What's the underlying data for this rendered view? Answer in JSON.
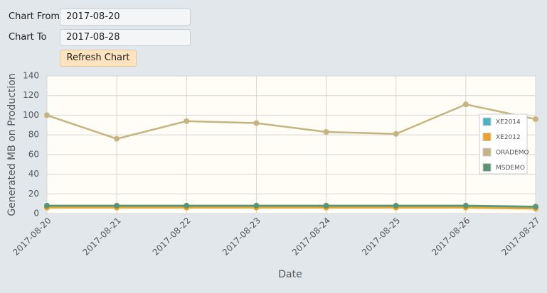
{
  "form": {
    "from_label": "Chart From",
    "from_value": "2017-08-20",
    "to_label": "Chart To",
    "to_value": "2017-08-28",
    "button": "Refresh Chart"
  },
  "chart_data": {
    "type": "line",
    "x_label": "Date",
    "y_label": "Generated MB on Production",
    "x": [
      "2017-08-20",
      "2017-08-21",
      "2017-08-22",
      "2017-08-23",
      "2017-08-24",
      "2017-08-25",
      "2017-08-26",
      "2017-08-27"
    ],
    "xlim": [
      "2017-08-20",
      "2017-08-27"
    ],
    "ylim": [
      0,
      140
    ],
    "yticks": [
      0,
      20,
      40,
      60,
      80,
      100,
      120,
      140
    ],
    "grid": true,
    "legend": "right",
    "series": [
      {
        "name": "XE2014",
        "color": "#4bb2c5",
        "values": [
          7,
          7,
          7,
          7,
          7,
          7,
          7,
          6
        ]
      },
      {
        "name": "XE2012",
        "color": "#eaa228",
        "values": [
          6,
          6,
          6,
          6,
          6,
          6,
          6,
          5
        ]
      },
      {
        "name": "ORADEMO",
        "color": "#c5b47f",
        "values": [
          100,
          76,
          94,
          92,
          83,
          81,
          111,
          96
        ]
      },
      {
        "name": "MSDEMO",
        "color": "#579575",
        "values": [
          8,
          8,
          8,
          8,
          8,
          8,
          8,
          7
        ]
      }
    ]
  }
}
